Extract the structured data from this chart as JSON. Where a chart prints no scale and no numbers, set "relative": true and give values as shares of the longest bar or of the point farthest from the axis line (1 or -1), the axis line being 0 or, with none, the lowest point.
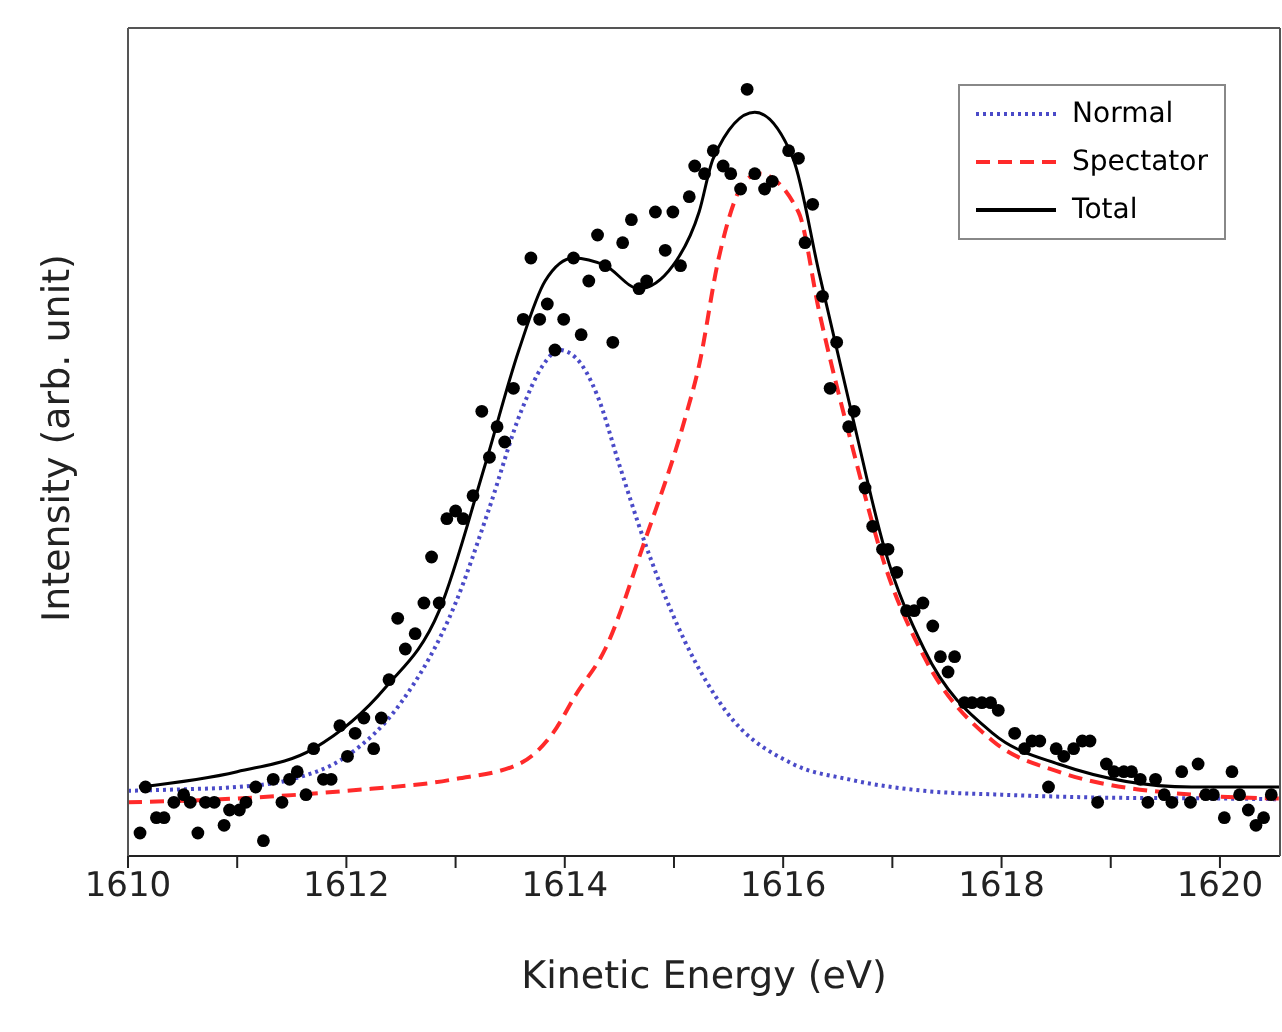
{
  "chart_data": {
    "type": "scatter",
    "xlabel": "Kinetic Energy (eV)",
    "ylabel": "Intensity (arb. unit)",
    "relative": true,
    "xlim": [
      1610,
      1620.55
    ],
    "xticks": [
      1610,
      {
        "value": 1611,
        "label": null
      },
      1612,
      {
        "value": 1613,
        "label": null
      },
      1614,
      {
        "value": 1615,
        "label": null
      },
      1616,
      {
        "value": 1617,
        "label": null
      },
      1618,
      {
        "value": 1619,
        "label": null
      },
      1620
    ],
    "legend": "top right",
    "grid": false,
    "series": [
      {
        "color": "#000000",
        "marker": "circle",
        "x": [
          1610.11,
          1610.16,
          1610.26,
          1610.33,
          1610.42,
          1610.51,
          1610.57,
          1610.64,
          1610.71,
          1610.79,
          1610.88,
          1610.93,
          1611.02,
          1611.08,
          1611.17,
          1611.24,
          1611.33,
          1611.41,
          1611.48,
          1611.55,
          1611.63,
          1611.7,
          1611.79,
          1611.86,
          1611.94,
          1612.01,
          1612.08,
          1612.16,
          1612.25,
          1612.32,
          1612.39,
          1612.47,
          1612.54,
          1612.63,
          1612.71,
          1612.78,
          1612.85,
          1612.92,
          1613.0,
          1613.07,
          1613.16,
          1613.24,
          1613.31,
          1613.38,
          1613.45,
          1613.53,
          1613.62,
          1613.69,
          1613.77,
          1613.84,
          1613.91,
          1613.99,
          1614.08,
          1614.15,
          1614.22,
          1614.3,
          1614.37,
          1614.44,
          1614.53,
          1614.61,
          1614.68,
          1614.75,
          1614.83,
          1614.92,
          1614.99,
          1615.06,
          1615.14,
          1615.19,
          1615.28,
          1615.36,
          1615.45,
          1615.52,
          1615.61,
          1615.67,
          1615.74,
          1615.83,
          1615.9,
          1616.05,
          1616.14,
          1616.2,
          1616.27,
          1616.36,
          1616.43,
          1616.49,
          1616.6,
          1616.65,
          1616.75,
          1616.82,
          1616.91,
          1616.96,
          1617.04,
          1617.13,
          1617.2,
          1617.28,
          1617.37,
          1617.44,
          1617.51,
          1617.57,
          1617.66,
          1617.73,
          1617.82,
          1617.9,
          1617.97,
          1618.12,
          1618.21,
          1618.28,
          1618.35,
          1618.43,
          1618.5,
          1618.57,
          1618.66,
          1618.74,
          1618.81,
          1618.88,
          1618.96,
          1619.03,
          1619.12,
          1619.19,
          1619.27,
          1619.34,
          1619.41,
          1619.49,
          1619.56,
          1619.65,
          1619.73,
          1619.8,
          1619.87,
          1619.94,
          1620.04,
          1620.11,
          1620.18,
          1620.26,
          1620.33,
          1620.4,
          1620.47
        ],
        "values": [
          0.03,
          0.09,
          0.05,
          0.05,
          0.07,
          0.08,
          0.07,
          0.03,
          0.07,
          0.07,
          0.04,
          0.06,
          0.06,
          0.07,
          0.09,
          0.02,
          0.1,
          0.07,
          0.1,
          0.11,
          0.08,
          0.14,
          0.1,
          0.1,
          0.17,
          0.13,
          0.16,
          0.18,
          0.14,
          0.18,
          0.23,
          0.31,
          0.27,
          0.29,
          0.33,
          0.39,
          0.33,
          0.44,
          0.45,
          0.44,
          0.47,
          0.58,
          0.52,
          0.56,
          0.54,
          0.61,
          0.7,
          0.78,
          0.7,
          0.72,
          0.66,
          0.7,
          0.78,
          0.68,
          0.75,
          0.81,
          0.77,
          0.67,
          0.8,
          0.83,
          0.74,
          0.75,
          0.84,
          0.79,
          0.84,
          0.77,
          0.86,
          0.9,
          0.89,
          0.92,
          0.9,
          0.89,
          0.87,
          1,
          0.89,
          0.87,
          0.88,
          0.92,
          0.91,
          0.8,
          0.85,
          0.73,
          0.61,
          0.67,
          0.56,
          0.58,
          0.48,
          0.43,
          0.4,
          0.4,
          0.37,
          0.32,
          0.32,
          0.33,
          0.3,
          0.26,
          0.24,
          0.26,
          0.2,
          0.2,
          0.2,
          0.2,
          0.19,
          0.16,
          0.14,
          0.15,
          0.15,
          0.09,
          0.14,
          0.13,
          0.14,
          0.15,
          0.15,
          0.07,
          0.12,
          0.11,
          0.11,
          0.11,
          0.1,
          0.07,
          0.1,
          0.08,
          0.07,
          0.11,
          0.07,
          0.12,
          0.08,
          0.08,
          0.05,
          0.11,
          0.08,
          0.06,
          0.04,
          0.05,
          0.08
        ]
      },
      {
        "type": "line",
        "name": "Normal",
        "color": "#4a4ac8",
        "line_style": "dotted",
        "x": [
          1610,
          1610.5,
          1611,
          1611.5,
          1612,
          1612.5,
          1613,
          1613.3,
          1613.6,
          1613.8,
          1613.95,
          1614.1,
          1614.3,
          1614.5,
          1614.73,
          1614.86,
          1615.1,
          1615.47,
          1616.09,
          1616.6,
          1617.29,
          1618,
          1619,
          1620,
          1620.55
        ],
        "values": [
          0.085,
          0.087,
          0.09,
          0.1,
          0.13,
          0.2,
          0.33,
          0.45,
          0.58,
          0.64,
          0.66,
          0.65,
          0.6,
          0.51,
          0.41,
          0.36,
          0.28,
          0.19,
          0.12,
          0.1,
          0.085,
          0.08,
          0.076,
          0.075,
          0.074
        ]
      },
      {
        "type": "line",
        "name": "Spectator",
        "color": "#ff2a2a",
        "line_style": "dashed",
        "x": [
          1610,
          1611,
          1612,
          1612.98,
          1613.58,
          1613.89,
          1614.1,
          1614.37,
          1614.73,
          1615.1,
          1615.23,
          1615.41,
          1615.65,
          1615.78,
          1616.14,
          1616.33,
          1616.64,
          1616.93,
          1617.29,
          1617.92,
          1618.52,
          1619.74,
          1620.55
        ],
        "values": [
          0.07,
          0.075,
          0.085,
          0.1,
          0.12,
          0.16,
          0.21,
          0.27,
          0.41,
          0.57,
          0.64,
          0.78,
          0.88,
          0.89,
          0.84,
          0.71,
          0.53,
          0.38,
          0.26,
          0.15,
          0.11,
          0.08,
          0.075
        ]
      },
      {
        "type": "line",
        "name": "Total",
        "color": "#000000",
        "line_style": "solid",
        "x": [
          1610.1,
          1611,
          1611.7,
          1612.36,
          1612.85,
          1613.27,
          1613.58,
          1613.82,
          1614.08,
          1614.37,
          1614.68,
          1614.99,
          1615.23,
          1615.36,
          1615.74,
          1616.09,
          1616.33,
          1616.64,
          1616.93,
          1617.29,
          1617.92,
          1618.52,
          1619.74,
          1620.55
        ],
        "values": [
          0.09,
          0.11,
          0.14,
          0.22,
          0.32,
          0.51,
          0.66,
          0.75,
          0.78,
          0.77,
          0.74,
          0.77,
          0.84,
          0.91,
          0.97,
          0.91,
          0.76,
          0.57,
          0.4,
          0.27,
          0.16,
          0.12,
          0.09,
          0.09
        ]
      }
    ]
  }
}
